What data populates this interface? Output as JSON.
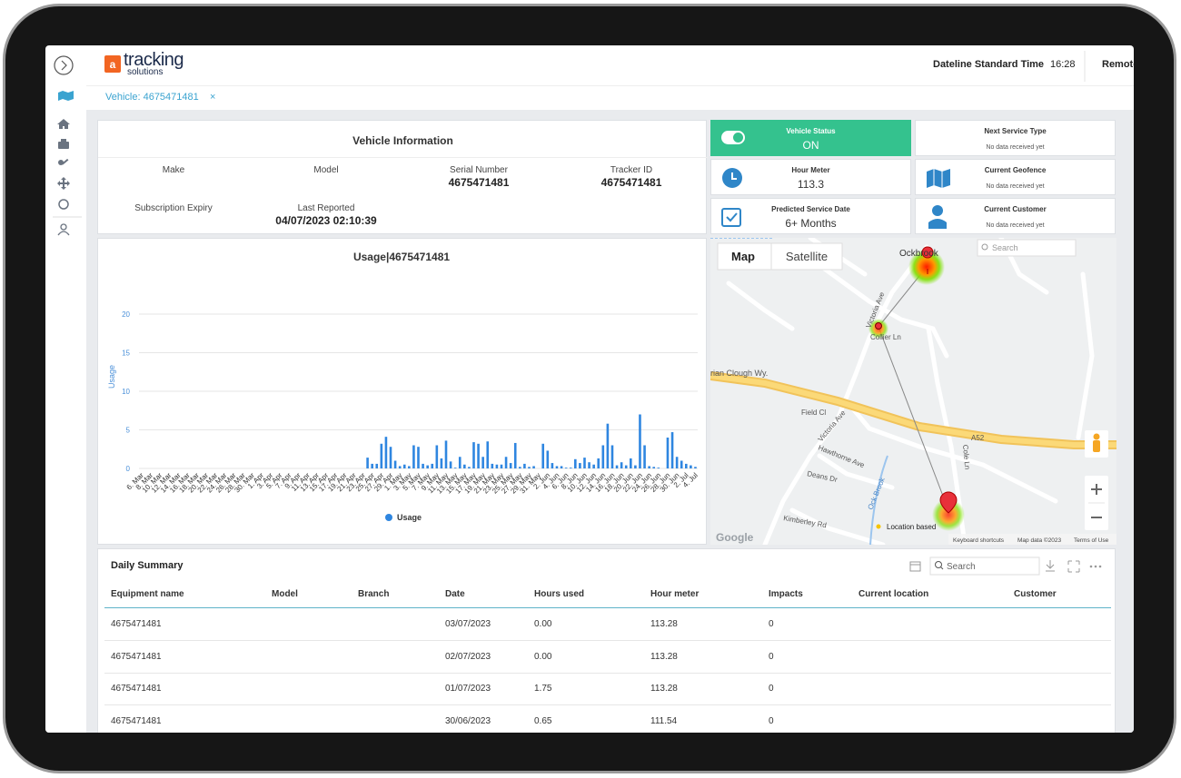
{
  "header": {
    "logo_main": "tracking",
    "logo_sub": "solutions",
    "timezone": "Dateline Standard Time",
    "time": "16:28",
    "user": "Remote"
  },
  "tab": {
    "label": "Vehicle: 4675471481",
    "close": "×"
  },
  "vehicle_info": {
    "title": "Vehicle Information",
    "fields": [
      {
        "label": "Make"
      },
      {
        "label": "Model"
      },
      {
        "label": "Serial Number",
        "value": "4675471481"
      },
      {
        "label": "Tracker ID",
        "value": "4675471481"
      },
      {
        "label": "Subscription Expiry"
      },
      {
        "label": "Last Reported",
        "value": "04/07/2023 02:10:39"
      }
    ]
  },
  "tiles": [
    {
      "label": "Vehicle Status",
      "value": "ON"
    },
    {
      "label": "Next Service Type",
      "value": "No data received yet"
    },
    {
      "label": "Hour Meter",
      "value": "113.3"
    },
    {
      "label": "Current Geofence",
      "value": "No data received yet"
    },
    {
      "label": "Predicted Service Date",
      "value": "6+ Months"
    },
    {
      "label": "Current Customer",
      "value": "No data received yet"
    }
  ],
  "chart_data": {
    "type": "bar",
    "title": "Usage|4675471481",
    "y_label": "Usage",
    "ylim": [
      0,
      20
    ],
    "yticks": [
      0,
      5,
      10,
      15,
      20
    ],
    "grid": true,
    "legend": "bottom",
    "categories": [
      "6. Mar",
      null,
      "8. Mar",
      null,
      "10. Mar",
      null,
      "12. Mar",
      null,
      "14. Mar",
      null,
      "16. Mar",
      null,
      "18. Mar",
      null,
      "20. Mar",
      null,
      "22. Mar",
      null,
      "24. Mar",
      null,
      "26. Mar",
      null,
      "28. Mar",
      null,
      "30. Mar",
      null,
      "1. Apr",
      null,
      "3. Apr",
      null,
      "5. Apr",
      null,
      "7. Apr",
      null,
      "9. Apr",
      null,
      "11. Apr",
      null,
      "13. Apr",
      null,
      "15. Apr",
      null,
      "17. Apr",
      null,
      "19. Apr",
      null,
      "21. Apr",
      null,
      "23. Apr",
      null,
      "25. Apr",
      null,
      "27. Apr",
      null,
      "29. Apr",
      null,
      "1. May",
      null,
      "3. May",
      null,
      "5. May",
      null,
      "7. May",
      null,
      "9. May",
      null,
      "11. May",
      null,
      "13. May",
      null,
      "15. May",
      null,
      "17. May",
      null,
      "19. May",
      null,
      "21. May",
      null,
      "23. May",
      null,
      "25. May",
      null,
      "27. May",
      null,
      "29. May",
      null,
      "31. May",
      null,
      "2. Jun",
      null,
      "4. Jun",
      null,
      "6. Jun",
      null,
      "8. Jun",
      null,
      "10. Jun",
      null,
      "12. Jun",
      null,
      "14. Jun",
      null,
      "16. Jun",
      null,
      "18. Jun",
      null,
      "20. Jun",
      null,
      "22. Jun",
      null,
      "24. Jun",
      null,
      "26. Jun",
      null,
      "28. Jun",
      null,
      "30. Jun",
      null,
      "2. Jul",
      null,
      "4. Jul"
    ],
    "series": [
      {
        "name": "Usage",
        "color": "#2f86e0",
        "values": [
          0,
          0,
          0,
          0,
          0,
          0,
          0,
          0,
          0,
          0,
          0,
          0,
          0,
          0,
          0,
          0,
          0,
          0,
          0,
          0,
          0,
          0,
          0,
          0,
          0,
          0,
          0,
          0,
          0,
          0,
          0,
          0,
          0,
          0,
          0,
          0,
          0,
          0,
          0,
          0,
          0,
          0,
          0,
          0,
          0,
          0,
          0,
          0,
          0,
          1.4,
          0.6,
          0.6,
          3.2,
          4.1,
          2.8,
          1,
          0.3,
          0.5,
          0.3,
          3,
          2.8,
          0.6,
          0.4,
          0.6,
          3,
          1.3,
          3.6,
          0.9,
          0.1,
          1.5,
          0.5,
          0.2,
          3.4,
          3.2,
          1.5,
          3.5,
          0.6,
          0.5,
          0.5,
          1.5,
          0.7,
          3.3,
          0.2,
          0.6,
          0.2,
          0.3,
          0,
          3.2,
          2.3,
          0.7,
          0.3,
          0.3,
          0.1,
          0.1,
          1.2,
          0.7,
          1.4,
          0.8,
          0.5,
          1.3,
          3,
          5.8,
          3,
          0.4,
          0.8,
          0.4,
          1.3,
          0.4,
          7,
          3,
          0.3,
          0.2,
          0.1,
          0,
          4,
          4.7,
          1.5,
          1,
          0.6,
          0.4,
          0.2
        ]
      }
    ]
  },
  "map": {
    "tabs": [
      "Map",
      "Satellite"
    ],
    "search": "Search",
    "labels": [
      "Ockbrook",
      "Victoria Ave",
      "Collier Ln",
      "Brian Clough Wy.",
      "Field Cl",
      "Victoria Ave",
      "Hawthorne Ave",
      "Deans Dr",
      "Kimberley Rd",
      "Ock Brook",
      "A52",
      "Cole Ln"
    ],
    "legend": "Location based",
    "attribution": [
      "Google",
      "Keyboard shortcuts",
      "Map data ©2023",
      "Terms of Use"
    ]
  },
  "summary": {
    "title": "Daily Summary",
    "search": "Search",
    "columns": [
      "Equipment name",
      "Model",
      "Branch",
      "Date",
      "Hours used",
      "Hour meter",
      "Impacts",
      "Current location",
      "Customer"
    ],
    "rows": [
      {
        "equipment": "4675471481",
        "date": "03/07/2023",
        "hours_used": "0.00",
        "hour_meter": "113.28",
        "impacts": "0"
      },
      {
        "equipment": "4675471481",
        "date": "02/07/2023",
        "hours_used": "0.00",
        "hour_meter": "113.28",
        "impacts": "0"
      },
      {
        "equipment": "4675471481",
        "date": "01/07/2023",
        "hours_used": "1.75",
        "hour_meter": "113.28",
        "impacts": "0"
      },
      {
        "equipment": "4675471481",
        "date": "30/06/2023",
        "hours_used": "0.65",
        "hour_meter": "111.54",
        "impacts": "0"
      }
    ]
  }
}
